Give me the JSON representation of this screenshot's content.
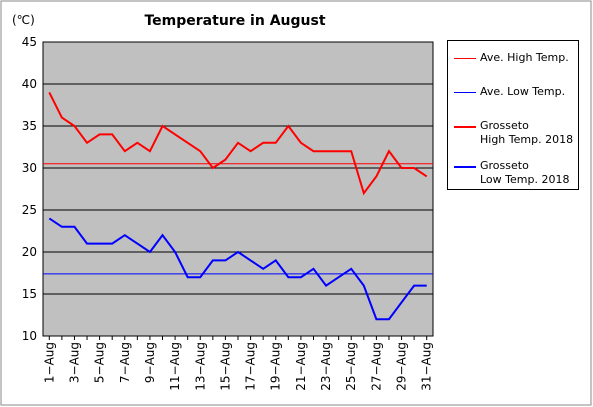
{
  "chart_data": {
    "type": "line",
    "title": "Temperature in August",
    "y_unit": "(℃)",
    "categories": [
      "1−Aug",
      null,
      "3−Aug",
      null,
      "5−Aug",
      null,
      "7−Aug",
      null,
      "9−Aug",
      null,
      "11−Aug",
      null,
      "13−Aug",
      null,
      "15−Aug",
      null,
      "17−Aug",
      null,
      "19−Aug",
      null,
      "21−Aug",
      null,
      "23−Aug",
      null,
      "25−Aug",
      null,
      "27−Aug",
      null,
      "29−Aug",
      null,
      "31−Aug"
    ],
    "ylim": [
      10,
      45
    ],
    "yticks": [
      10,
      15,
      20,
      25,
      30,
      35,
      40,
      45
    ],
    "grid": true,
    "reference_lines": [
      {
        "name": "Ave. High Temp.",
        "color": "#ff0000",
        "value": 30.5
      },
      {
        "name": "Ave. Low Temp.",
        "color": "#0000ff",
        "value": 17.4
      }
    ],
    "series": [
      {
        "name": "Grosseto\nHigh Temp. 2018",
        "color": "#ff0000",
        "values": [
          39,
          36,
          35,
          33,
          34,
          34,
          32,
          33,
          32,
          35,
          34,
          33,
          32,
          30,
          31,
          33,
          32,
          33,
          33,
          35,
          33,
          32,
          32,
          32,
          32,
          27,
          29,
          32,
          30,
          30,
          29
        ]
      },
      {
        "name": "Grosseto\nLow Temp. 2018",
        "color": "#0000ff",
        "values": [
          24,
          23,
          23,
          21,
          21,
          21,
          22,
          21,
          20,
          22,
          20,
          17,
          17,
          19,
          19,
          20,
          19,
          18,
          19,
          17,
          17,
          18,
          16,
          17,
          18,
          16,
          12,
          12,
          14,
          16,
          16
        ]
      }
    ]
  }
}
